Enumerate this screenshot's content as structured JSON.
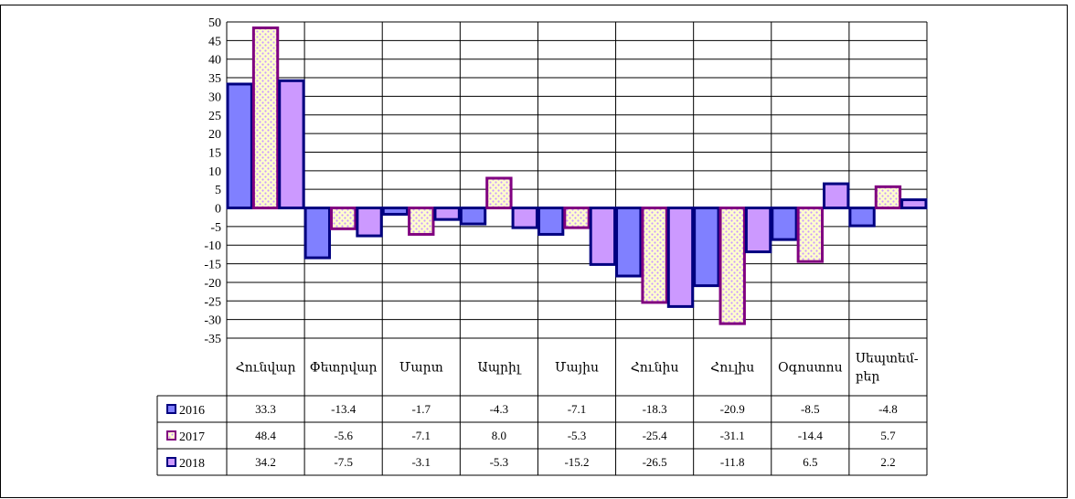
{
  "chart_data": {
    "type": "bar",
    "categories": [
      "Հունվար",
      "Փետրվար",
      "Մարտ",
      "Ապրիլ",
      "Մայիս",
      "Հունիս",
      "Հուլիս",
      "Օգոստոս",
      "Սեպտեմ-բեր"
    ],
    "category_lines": [
      [
        "Հունվար"
      ],
      [
        "Փետրվար"
      ],
      [
        "Մարտ"
      ],
      [
        "Ապրիլ"
      ],
      [
        "Մայիս"
      ],
      [
        "Հունիս"
      ],
      [
        "Հուլիս"
      ],
      [
        "Օգոստոս"
      ],
      [
        "Սեպտեմ-",
        "բեր"
      ]
    ],
    "series": [
      {
        "name": "2016",
        "values": [
          33.3,
          -13.4,
          -1.7,
          -4.3,
          -7.1,
          -18.3,
          -20.9,
          -8.5,
          -4.8
        ],
        "value_labels": [
          "33.3",
          "-13.4",
          "-1.7",
          "-4.3",
          "-7.1",
          "-18.3",
          "-20.9",
          "-8.5",
          "-4.8"
        ],
        "fill": "#8080ff",
        "stroke": "#000080",
        "pattern": "solid"
      },
      {
        "name": "2017",
        "values": [
          48.4,
          -5.6,
          -7.1,
          8.0,
          -5.3,
          -25.4,
          -31.1,
          -14.4,
          5.7
        ],
        "value_labels": [
          "48.4",
          "-5.6",
          "-7.1",
          "8.0",
          "-5.3",
          "-25.4",
          "-31.1",
          "-14.4",
          "5.7"
        ],
        "fill": "#ffffcc",
        "stroke": "#800080",
        "pattern": "dotted"
      },
      {
        "name": "2018",
        "values": [
          34.2,
          -7.5,
          -3.1,
          -5.3,
          -15.2,
          -26.5,
          -11.8,
          6.5,
          2.2
        ],
        "value_labels": [
          "34.2",
          "-7.5",
          "-3.1",
          "-5.3",
          "-15.2",
          "-26.5",
          "-11.8",
          "6.5",
          "2.2"
        ],
        "fill": "#cc99ff",
        "stroke": "#000080",
        "pattern": "solid"
      }
    ],
    "yticks": [
      50,
      45,
      40,
      35,
      30,
      25,
      20,
      15,
      10,
      5,
      0,
      -5,
      -10,
      -15,
      -20,
      -25,
      -30,
      -35
    ],
    "ylim": [
      -35,
      50
    ],
    "grid": true,
    "legend": "data-table-left",
    "pattern_dot_color": "#cc99ff"
  }
}
